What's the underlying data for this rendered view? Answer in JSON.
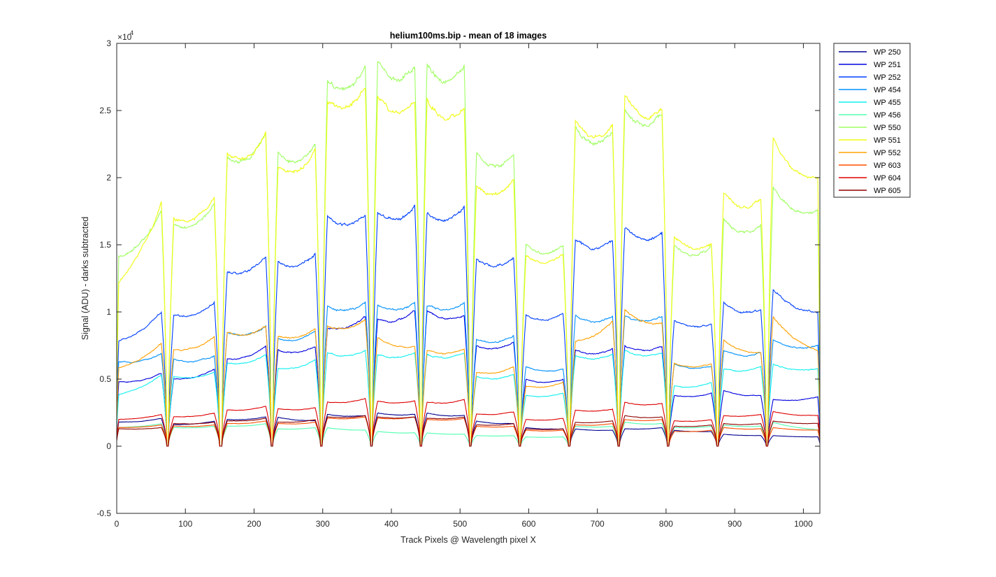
{
  "chart_data": {
    "type": "line",
    "title": "helium100ms.bip - mean of 18 images",
    "xlabel": "Track Pixels @ Wavelength pixel X",
    "ylabel": "Signal (ADU) - darks subtracted",
    "xlim": [
      0,
      1024
    ],
    "ylim": [
      -5000,
      30000
    ],
    "y_exponent_label": "×10",
    "y_exponent": "4",
    "x_ticks": [
      0,
      100,
      200,
      300,
      400,
      500,
      600,
      700,
      800,
      900,
      1000
    ],
    "x_tick_labels": [
      "0",
      "100",
      "200",
      "300",
      "400",
      "500",
      "600",
      "700",
      "800",
      "900",
      "1000"
    ],
    "y_ticks": [
      -5000,
      0,
      5000,
      10000,
      15000,
      20000,
      25000,
      30000
    ],
    "y_tick_labels": [
      "-0.5",
      "0",
      "0.5",
      "1",
      "1.5",
      "2",
      "2.5",
      "3"
    ],
    "grid": false,
    "legend_position": "outside-top-right",
    "segments": [
      {
        "start": 0,
        "end": 68
      },
      {
        "start": 80,
        "end": 145
      },
      {
        "start": 158,
        "end": 220
      },
      {
        "start": 232,
        "end": 292
      },
      {
        "start": 304,
        "end": 365
      },
      {
        "start": 377,
        "end": 437
      },
      {
        "start": 449,
        "end": 509
      },
      {
        "start": 521,
        "end": 581
      },
      {
        "start": 593,
        "end": 653
      },
      {
        "start": 665,
        "end": 725
      },
      {
        "start": 737,
        "end": 797
      },
      {
        "start": 809,
        "end": 869
      },
      {
        "start": 881,
        "end": 941
      },
      {
        "start": 953,
        "end": 1024
      }
    ],
    "series": [
      {
        "name": "WP 250",
        "color": "#00008F",
        "segment_values": [
          [
            1800,
            2100
          ],
          [
            1600,
            1900
          ],
          [
            2000,
            2200
          ],
          [
            2200,
            1900
          ],
          [
            2400,
            2300
          ],
          [
            2500,
            2400
          ],
          [
            2500,
            2300
          ],
          [
            1900,
            1700
          ],
          [
            1400,
            1300
          ],
          [
            1300,
            1200
          ],
          [
            1300,
            1400
          ],
          [
            1200,
            1100
          ],
          [
            900,
            800
          ],
          [
            800,
            700
          ]
        ]
      },
      {
        "name": "WP 251",
        "color": "#0000DF",
        "segment_values": [
          [
            4800,
            5500
          ],
          [
            5000,
            5800
          ],
          [
            6500,
            7500
          ],
          [
            7200,
            7500
          ],
          [
            8800,
            9800
          ],
          [
            9500,
            10200
          ],
          [
            10200,
            9800
          ],
          [
            7500,
            7800
          ],
          [
            5000,
            5000
          ],
          [
            7200,
            7300
          ],
          [
            7500,
            7500
          ],
          [
            3800,
            4000
          ],
          [
            4200,
            3800
          ],
          [
            3500,
            3700
          ]
        ]
      },
      {
        "name": "WP 252",
        "color": "#0040FF",
        "segment_values": [
          [
            7800,
            10200
          ],
          [
            9800,
            10800
          ],
          [
            13000,
            14300
          ],
          [
            13800,
            14500
          ],
          [
            17200,
            17500
          ],
          [
            17500,
            18000
          ],
          [
            17500,
            18000
          ],
          [
            14000,
            14200
          ],
          [
            9800,
            10000
          ],
          [
            15500,
            15500
          ],
          [
            16500,
            16000
          ],
          [
            9500,
            9200
          ],
          [
            10800,
            10200
          ],
          [
            11800,
            10000
          ]
        ]
      },
      {
        "name": "WP 454",
        "color": "#0090FF",
        "segment_values": [
          [
            6300,
            7000
          ],
          [
            6500,
            6800
          ],
          [
            8500,
            9000
          ],
          [
            8000,
            8700
          ],
          [
            10500,
            10800
          ],
          [
            10600,
            10800
          ],
          [
            10600,
            10800
          ],
          [
            8000,
            8300
          ],
          [
            6000,
            5800
          ],
          [
            9800,
            9700
          ],
          [
            9800,
            9800
          ],
          [
            6200,
            6000
          ],
          [
            7200,
            7000
          ],
          [
            8000,
            7500
          ]
        ]
      },
      {
        "name": "WP 455",
        "color": "#10EFEF",
        "segment_values": [
          [
            3800,
            5400
          ],
          [
            5200,
            5600
          ],
          [
            6200,
            6900
          ],
          [
            5800,
            6500
          ],
          [
            7000,
            7200
          ],
          [
            6900,
            7000
          ],
          [
            6900,
            7000
          ],
          [
            5200,
            5400
          ],
          [
            3800,
            4000
          ],
          [
            6800,
            6900
          ],
          [
            7200,
            7000
          ],
          [
            4500,
            4800
          ],
          [
            5800,
            6000
          ],
          [
            6200,
            5800
          ]
        ]
      },
      {
        "name": "WP 456",
        "color": "#50FFAF",
        "segment_values": [
          [
            1400,
            1700
          ],
          [
            1400,
            1500
          ],
          [
            1500,
            1700
          ],
          [
            1300,
            1400
          ],
          [
            1400,
            1200
          ],
          [
            1100,
            1000
          ],
          [
            1000,
            900
          ],
          [
            800,
            800
          ],
          [
            700,
            700
          ],
          [
            1500,
            1500
          ],
          [
            1800,
            1700
          ],
          [
            1400,
            1500
          ],
          [
            1600,
            1500
          ],
          [
            1800,
            1200
          ]
        ]
      },
      {
        "name": "WP 550",
        "color": "#9FFF60",
        "segment_values": [
          [
            14000,
            17800
          ],
          [
            16500,
            18200
          ],
          [
            21500,
            23500
          ],
          [
            22000,
            22800
          ],
          [
            27500,
            28500
          ],
          [
            28800,
            28500
          ],
          [
            28500,
            28500
          ],
          [
            22000,
            21800
          ],
          [
            15200,
            15000
          ],
          [
            24000,
            23500
          ],
          [
            25300,
            25000
          ],
          [
            15000,
            15000
          ],
          [
            17000,
            16500
          ],
          [
            19500,
            17500
          ]
        ]
      },
      {
        "name": "WP 551",
        "color": "#EFFF10",
        "segment_values": [
          [
            12000,
            18500
          ],
          [
            17000,
            18800
          ],
          [
            21800,
            23500
          ],
          [
            21000,
            22200
          ],
          [
            26000,
            27000
          ],
          [
            26500,
            25800
          ],
          [
            26000,
            25500
          ],
          [
            19500,
            20000
          ],
          [
            14200,
            14500
          ],
          [
            24500,
            24000
          ],
          [
            26500,
            25200
          ],
          [
            15800,
            15200
          ],
          [
            19000,
            18500
          ],
          [
            23000,
            20000
          ]
        ]
      },
      {
        "name": "WP 552",
        "color": "#FFA000",
        "segment_values": [
          [
            5800,
            7800
          ],
          [
            7200,
            8200
          ],
          [
            8500,
            9000
          ],
          [
            8200,
            8900
          ],
          [
            9000,
            9500
          ],
          [
            8200,
            7500
          ],
          [
            7200,
            7300
          ],
          [
            5500,
            6000
          ],
          [
            4500,
            4800
          ],
          [
            7800,
            9500
          ],
          [
            10300,
            9200
          ],
          [
            6200,
            6200
          ],
          [
            8000,
            7000
          ],
          [
            9800,
            7000
          ]
        ]
      },
      {
        "name": "WP 603",
        "color": "#FF5000",
        "segment_values": [
          [
            1400,
            1600
          ],
          [
            1500,
            1600
          ],
          [
            1700,
            1900
          ],
          [
            1700,
            1800
          ],
          [
            2100,
            2200
          ],
          [
            2100,
            2200
          ],
          [
            2000,
            2100
          ],
          [
            1500,
            1500
          ],
          [
            1200,
            1200
          ],
          [
            1600,
            1700
          ],
          [
            2000,
            2000
          ],
          [
            1100,
            1200
          ],
          [
            1400,
            1300
          ],
          [
            1400,
            1200
          ]
        ]
      },
      {
        "name": "WP 604",
        "color": "#DF0000",
        "segment_values": [
          [
            2000,
            2400
          ],
          [
            2200,
            2500
          ],
          [
            2700,
            3000
          ],
          [
            2800,
            2900
          ],
          [
            3300,
            3600
          ],
          [
            3400,
            3400
          ],
          [
            3300,
            3500
          ],
          [
            2400,
            2600
          ],
          [
            2000,
            2100
          ],
          [
            2700,
            2800
          ],
          [
            3300,
            3200
          ],
          [
            1900,
            2000
          ],
          [
            2300,
            2400
          ],
          [
            2600,
            2300
          ]
        ]
      },
      {
        "name": "WP 605",
        "color": "#8F0000",
        "segment_values": [
          [
            1300,
            1400
          ],
          [
            1700,
            1800
          ],
          [
            1900,
            2100
          ],
          [
            1800,
            2000
          ],
          [
            2200,
            2300
          ],
          [
            2200,
            2200
          ],
          [
            2100,
            2200
          ],
          [
            1600,
            1700
          ],
          [
            1300,
            1300
          ],
          [
            1800,
            1900
          ],
          [
            2300,
            2200
          ],
          [
            1500,
            1600
          ],
          [
            1700,
            1700
          ],
          [
            1900,
            1700
          ]
        ]
      }
    ]
  }
}
